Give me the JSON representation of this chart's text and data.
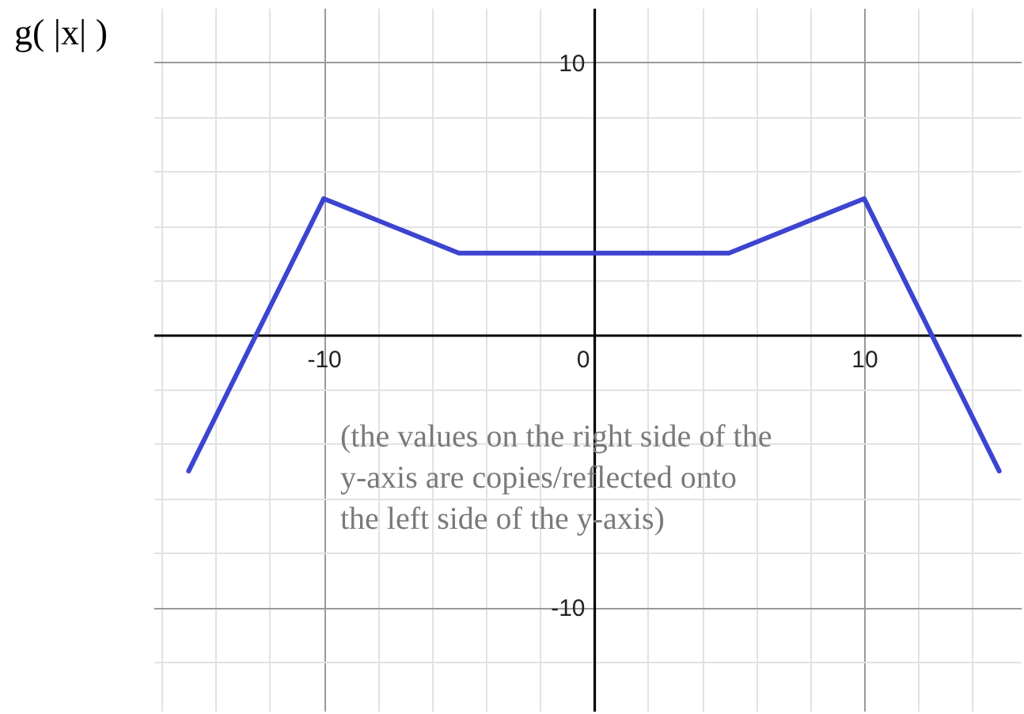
{
  "chart_data": {
    "type": "line",
    "title": "g( |x| )",
    "x": [
      -15,
      -10,
      -5,
      5,
      10,
      15
    ],
    "series": [
      {
        "color": "#3c44d0",
        "values": [
          -5,
          5,
          3,
          3,
          5,
          -5
        ]
      }
    ],
    "xlim": [
      -16.3,
      15.8
    ],
    "ylim": [
      -13.8,
      12
    ],
    "xticks": [
      {
        "value": -16,
        "label": null
      },
      {
        "value": -14,
        "label": null
      },
      {
        "value": -12,
        "label": null
      },
      -10,
      {
        "value": -8,
        "label": null
      },
      {
        "value": -6,
        "label": null
      },
      {
        "value": -4,
        "label": null
      },
      {
        "value": -2,
        "label": null
      },
      0,
      {
        "value": 2,
        "label": null
      },
      {
        "value": 4,
        "label": null
      },
      {
        "value": 6,
        "label": null
      },
      {
        "value": 8,
        "label": null
      },
      10,
      {
        "value": 12,
        "label": null
      },
      {
        "value": 14,
        "label": null
      }
    ],
    "yticks": [
      {
        "value": -12,
        "label": null
      },
      -10,
      {
        "value": -8,
        "label": null
      },
      {
        "value": -6,
        "label": null
      },
      {
        "value": -4,
        "label": null
      },
      {
        "value": -2,
        "label": null
      },
      {
        "value": 2,
        "label": null
      },
      {
        "value": 4,
        "label": null
      },
      {
        "value": 6,
        "label": null
      },
      {
        "value": 8,
        "label": null
      },
      10
    ],
    "annotations": [
      "(the values on the right side of the\ny-axis are copies/reflected onto\nthe left side of the y-axis)"
    ],
    "grid": true
  }
}
